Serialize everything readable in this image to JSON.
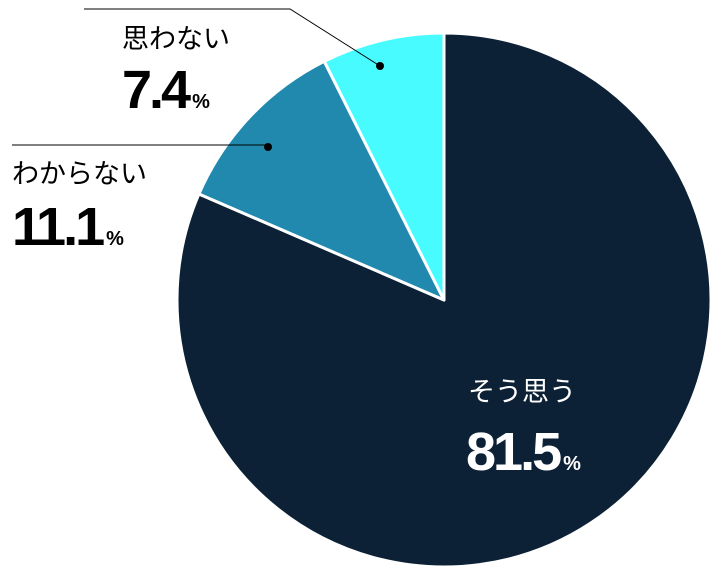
{
  "chart_data": {
    "type": "pie",
    "start_angle_deg": 0,
    "direction": "clockwise",
    "slices": [
      {
        "label": "そう思う",
        "value": 81.5,
        "value_text": "81.5",
        "unit": "%",
        "color": "#0c2135",
        "label_color": "#ffffff"
      },
      {
        "label": "わからない",
        "value": 11.1,
        "value_text": "11.1",
        "unit": "%",
        "color": "#2189ae",
        "label_color": "#000000"
      },
      {
        "label": "思わない",
        "value": 7.4,
        "value_text": "7.4",
        "unit": "%",
        "color": "#47fbff",
        "label_color": "#000000"
      }
    ]
  }
}
